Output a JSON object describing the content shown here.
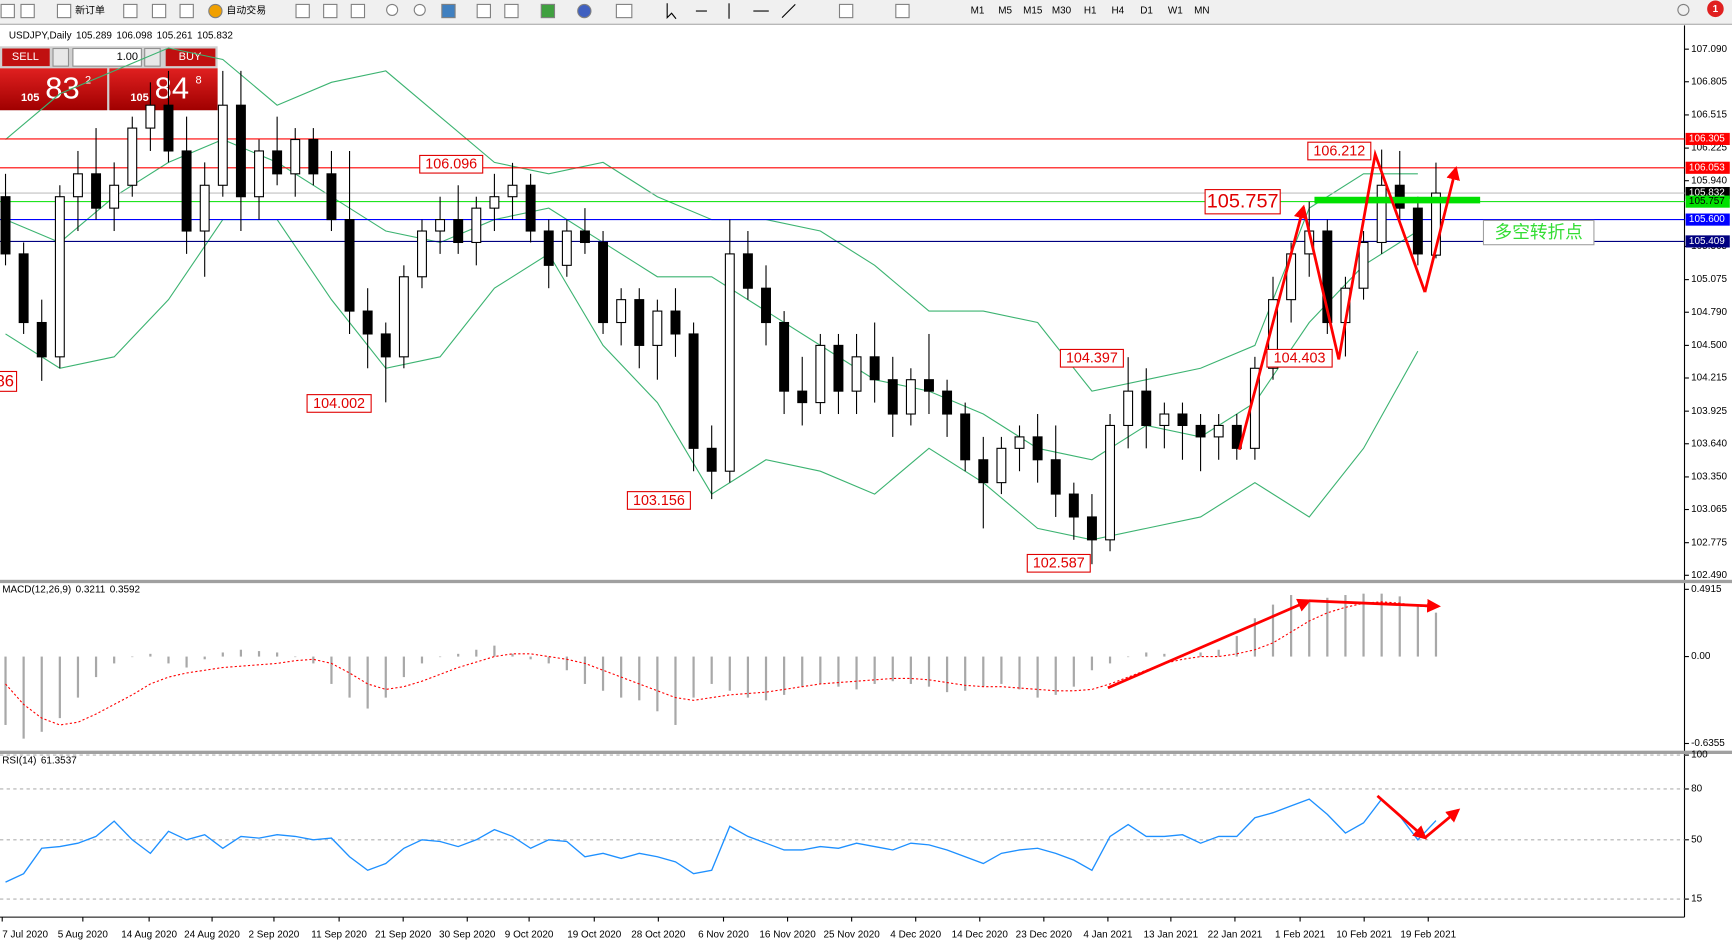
{
  "toolbar": {
    "new_order": "新订单",
    "auto_trading": "自动交易",
    "timeframes": [
      "M1",
      "M5",
      "M15",
      "M30",
      "H1",
      "H4",
      "D1",
      "W1",
      "MN"
    ],
    "notifications": "1"
  },
  "trade_panel": {
    "sell": "SELL",
    "buy": "BUY",
    "lots": "1.00",
    "sell_price": {
      "big_figure": "105",
      "pips": "83",
      "fraction": "2"
    },
    "buy_price": {
      "big_figure": "105",
      "pips": "84",
      "fraction": "8"
    }
  },
  "chart_data": [
    {
      "type": "candlestick",
      "title": "USDJPY,Daily",
      "header_values": [
        105.289,
        106.098,
        105.261,
        105.832
      ],
      "up_color": "#ffffff",
      "down_color": "#000000",
      "open": [
        105.8,
        105.3,
        104.7,
        104.4,
        105.8,
        106.0,
        105.7,
        105.9,
        106.4,
        106.6,
        106.2,
        105.5,
        105.9,
        106.6,
        105.8,
        106.2,
        106.0,
        106.3,
        106.0,
        105.6,
        104.8,
        104.6,
        104.4,
        105.1,
        105.5,
        105.6,
        105.4,
        105.7,
        105.8,
        105.9,
        105.5,
        105.2,
        105.5,
        105.4,
        104.7,
        104.9,
        104.5,
        104.8,
        104.6,
        103.6,
        103.4,
        105.3,
        105.0,
        104.7,
        104.1,
        104.0,
        104.5,
        104.1,
        104.4,
        104.2,
        103.9,
        104.2,
        104.1,
        103.9,
        103.5,
        103.3,
        103.6,
        103.7,
        103.5,
        103.2,
        103.0,
        102.8,
        103.8,
        104.1,
        103.8,
        103.9,
        103.8,
        103.7,
        103.8,
        103.6,
        104.3,
        104.9,
        105.3,
        105.5,
        104.7,
        105.0,
        105.4,
        105.9,
        105.7,
        105.289
      ],
      "high": [
        106.0,
        105.4,
        104.9,
        105.9,
        106.2,
        106.4,
        106.1,
        106.5,
        106.8,
        106.9,
        106.5,
        106.1,
        106.9,
        106.9,
        106.3,
        106.5,
        106.4,
        106.4,
        106.2,
        106.2,
        105.0,
        104.7,
        105.2,
        105.6,
        105.8,
        105.9,
        105.8,
        106.0,
        106.096,
        106.0,
        105.6,
        105.6,
        105.7,
        105.5,
        105.0,
        105.0,
        104.9,
        105.0,
        104.7,
        103.8,
        105.6,
        105.5,
        105.2,
        104.8,
        104.4,
        104.6,
        104.6,
        104.6,
        104.7,
        104.4,
        104.3,
        104.6,
        104.2,
        104.0,
        103.7,
        103.7,
        103.8,
        103.9,
        103.8,
        103.3,
        103.2,
        103.9,
        104.397,
        104.3,
        104.0,
        104.0,
        103.9,
        103.9,
        103.9,
        104.4,
        105.1,
        105.4,
        105.757,
        105.6,
        105.1,
        105.5,
        106.212,
        106.2,
        105.8,
        106.098
      ],
      "low": [
        105.2,
        104.6,
        104.19,
        104.3,
        105.5,
        105.6,
        105.5,
        105.8,
        106.2,
        106.1,
        105.3,
        105.1,
        105.8,
        105.5,
        105.6,
        105.9,
        105.8,
        105.9,
        105.5,
        104.6,
        104.3,
        104.002,
        104.3,
        105.0,
        105.3,
        105.3,
        105.2,
        105.5,
        105.6,
        105.4,
        105.0,
        105.1,
        105.3,
        104.6,
        104.5,
        104.3,
        104.2,
        104.4,
        103.4,
        103.156,
        103.3,
        104.9,
        104.5,
        103.9,
        103.8,
        103.9,
        103.9,
        103.9,
        104.0,
        103.7,
        103.8,
        103.9,
        103.7,
        103.4,
        102.9,
        103.2,
        103.4,
        103.3,
        103.0,
        102.8,
        102.587,
        102.7,
        103.6,
        103.6,
        103.6,
        103.5,
        103.4,
        103.5,
        103.5,
        103.5,
        104.2,
        104.7,
        105.1,
        104.6,
        104.403,
        104.9,
        105.3,
        105.6,
        105.2,
        105.261
      ],
      "close": [
        105.3,
        104.7,
        104.4,
        105.8,
        106.0,
        105.7,
        105.9,
        106.4,
        106.6,
        106.2,
        105.5,
        105.9,
        106.6,
        105.8,
        106.2,
        106.0,
        106.3,
        106.0,
        105.6,
        104.8,
        104.6,
        104.4,
        105.1,
        105.5,
        105.6,
        105.4,
        105.7,
        105.8,
        105.9,
        105.5,
        105.2,
        105.5,
        105.4,
        104.7,
        104.9,
        104.5,
        104.8,
        104.6,
        103.6,
        103.4,
        105.3,
        105.0,
        104.7,
        104.1,
        104.0,
        104.5,
        104.1,
        104.4,
        104.2,
        103.9,
        104.2,
        104.1,
        103.9,
        103.5,
        103.3,
        103.6,
        103.7,
        103.5,
        103.2,
        103.0,
        102.8,
        103.8,
        104.1,
        103.8,
        103.9,
        103.8,
        103.7,
        103.8,
        103.6,
        104.3,
        104.9,
        105.3,
        105.5,
        104.7,
        105.0,
        105.4,
        105.9,
        105.7,
        105.3,
        105.832
      ],
      "bands": {
        "color": "#3cb371",
        "x": [
          0,
          3,
          6,
          9,
          12,
          15,
          18,
          21,
          24,
          27,
          30,
          33,
          36,
          39,
          42,
          45,
          48,
          51,
          54,
          57,
          60,
          63,
          66,
          69,
          72,
          75,
          78
        ],
        "upper": [
          106.3,
          106.7,
          106.9,
          107.1,
          107.0,
          106.6,
          106.8,
          106.9,
          106.5,
          106.1,
          106.0,
          106.1,
          105.8,
          105.6,
          105.6,
          105.5,
          105.2,
          104.8,
          104.8,
          104.7,
          104.1,
          104.2,
          104.3,
          104.5,
          105.7,
          106.0,
          106.0
        ],
        "middle": [
          105.6,
          105.4,
          105.8,
          106.1,
          106.3,
          106.1,
          105.8,
          105.5,
          105.4,
          105.6,
          105.7,
          105.4,
          105.1,
          105.1,
          104.8,
          104.5,
          104.2,
          104.1,
          103.9,
          103.6,
          103.5,
          103.8,
          103.7,
          104.0,
          104.7,
          105.2,
          105.5
        ],
        "lower": [
          104.6,
          104.3,
          104.4,
          104.9,
          105.6,
          105.6,
          104.9,
          104.3,
          104.4,
          105.0,
          105.3,
          104.5,
          104.0,
          103.2,
          103.5,
          103.4,
          103.2,
          103.6,
          103.3,
          102.9,
          102.8,
          102.9,
          103.0,
          103.3,
          103.0,
          103.6,
          104.45
        ]
      },
      "ylim": [
        102.46,
        107.25
      ],
      "yticks": [
        {
          "value": 107.09,
          "label": "107.090"
        },
        106.805,
        106.515,
        106.225,
        {
          "value": 105.94,
          "label": "105.940"
        },
        105.365,
        105.075,
        {
          "value": 104.79,
          "label": "104.790"
        },
        {
          "value": 104.5,
          "label": "104.500"
        },
        104.215,
        103.925,
        {
          "value": 103.64,
          "label": "103.640"
        },
        {
          "value": 103.35,
          "label": "103.350"
        },
        103.065,
        102.775,
        {
          "value": 102.49,
          "label": "102.490"
        }
      ],
      "levels": [
        {
          "price": 106.305,
          "color": "#ff0000",
          "text_color": "#ffffff"
        },
        {
          "price": 106.053,
          "color": "#ff0000",
          "text_color": "#ffffff"
        },
        {
          "price": 105.832,
          "color": "#000000",
          "line_color": "#c0c0c0",
          "text_color": "#ffffff"
        },
        {
          "price": 105.757,
          "color": "#00e000",
          "text_color": "#000000"
        },
        {
          "price": {
            "value": 105.6,
            "label": "105.600"
          },
          "color": "#0000ff",
          "text_color": "#ffffff"
        },
        {
          "price": 105.409,
          "color": "#000080",
          "text_color": "#ffffff"
        }
      ],
      "annotations": [
        106.096,
        104.002,
        103.156,
        102.587,
        104.397,
        104.403,
        106.212,
        105.757
      ],
      "clipped_label": "86",
      "turning_point_label": "多空转折点",
      "x_labels": [
        "7 Jul 2020",
        "5 Aug 2020",
        "14 Aug 2020",
        "24 Aug 2020",
        "2 Sep 2020",
        "11 Sep 2020",
        "21 Sep 2020",
        "30 Sep 2020",
        "9 Oct 2020",
        "19 Oct 2020",
        "28 Oct 2020",
        "6 Nov 2020",
        "16 Nov 2020",
        "25 Nov 2020",
        "4 Dec 2020",
        "14 Dec 2020",
        "23 Dec 2020",
        "4 Jan 2021",
        "13 Jan 2021",
        "22 Jan 2021",
        "1 Feb 2021",
        "10 Feb 2021",
        "19 Feb 2021"
      ]
    },
    {
      "type": "bar",
      "title": "MACD(12,26,9)",
      "header_values": [
        0.3211,
        0.3592
      ],
      "series": [
        {
          "name": "MACD",
          "color": "#a8a8a8",
          "values": [
            -0.5,
            -0.6,
            -0.55,
            -0.45,
            -0.3,
            -0.15,
            -0.05,
            0.0,
            0.02,
            -0.05,
            -0.08,
            -0.02,
            0.03,
            0.05,
            0.04,
            0.03,
            0.0,
            -0.05,
            -0.2,
            -0.3,
            -0.38,
            -0.3,
            -0.15,
            -0.05,
            0.0,
            0.02,
            0.05,
            0.08,
            0.02,
            -0.02,
            -0.05,
            -0.1,
            -0.2,
            -0.25,
            -0.3,
            -0.32,
            -0.4,
            -0.5,
            -0.3,
            -0.2,
            -0.25,
            -0.3,
            -0.32,
            -0.28,
            -0.22,
            -0.2,
            -0.22,
            -0.24,
            -0.2,
            -0.18,
            -0.2,
            -0.22,
            -0.26,
            -0.25,
            -0.22,
            -0.2,
            -0.24,
            -0.3,
            -0.28,
            -0.22,
            -0.1,
            -0.05,
            0.0,
            0.03,
            0.02,
            0.0,
            0.03,
            0.05,
            0.15,
            0.28,
            0.38,
            0.45,
            0.4,
            0.43,
            0.45,
            0.46,
            0.46,
            0.44,
            0.38,
            0.3211
          ]
        },
        {
          "name": "Signal",
          "color": "#ff0000",
          "values": [
            -0.2,
            -0.35,
            -0.45,
            -0.5,
            -0.48,
            -0.42,
            -0.35,
            -0.28,
            -0.2,
            -0.15,
            -0.12,
            -0.1,
            -0.08,
            -0.07,
            -0.06,
            -0.05,
            -0.03,
            -0.02,
            -0.05,
            -0.12,
            -0.2,
            -0.24,
            -0.22,
            -0.18,
            -0.13,
            -0.08,
            -0.04,
            0.0,
            0.02,
            0.02,
            0.0,
            -0.02,
            -0.05,
            -0.1,
            -0.15,
            -0.2,
            -0.25,
            -0.3,
            -0.32,
            -0.3,
            -0.28,
            -0.27,
            -0.26,
            -0.24,
            -0.22,
            -0.2,
            -0.19,
            -0.18,
            -0.17,
            -0.16,
            -0.16,
            -0.17,
            -0.19,
            -0.21,
            -0.22,
            -0.22,
            -0.23,
            -0.24,
            -0.25,
            -0.25,
            -0.24,
            -0.2,
            -0.15,
            -0.1,
            -0.05,
            -0.02,
            0.0,
            0.0,
            0.02,
            0.05,
            0.1,
            0.18,
            0.26,
            0.32,
            0.36,
            0.39,
            0.4,
            0.39,
            0.37,
            0.3592
          ]
        }
      ],
      "ylim": [
        -0.68,
        0.545
      ],
      "yticks": [
        0.4915,
        {
          "value": 0,
          "label": "0.00"
        },
        -0.6355
      ]
    },
    {
      "type": "line",
      "title": "RSI(14)",
      "header_values": [
        61.3537
      ],
      "series": [
        {
          "name": "RSI",
          "color": "#1e90ff",
          "values": [
            25,
            30,
            45,
            46,
            48,
            52,
            61,
            50,
            42,
            55,
            50,
            53,
            45,
            52,
            51,
            53,
            52,
            50,
            51,
            40,
            32,
            36,
            45,
            50,
            49,
            46,
            50,
            56,
            52,
            45,
            50,
            49,
            40,
            42,
            39,
            42,
            40,
            37,
            30,
            32,
            58,
            52,
            48,
            44,
            44,
            46,
            45,
            48,
            46,
            44,
            48,
            47,
            44,
            40,
            36,
            42,
            44,
            45,
            42,
            38,
            32,
            52,
            59,
            52,
            52,
            53,
            48,
            52,
            52,
            63,
            66,
            70,
            74,
            65,
            54,
            60,
            74,
            64,
            50,
            61.3537
          ]
        }
      ],
      "ylim": [
        5,
        100
      ],
      "yticks": [
        100,
        80,
        50,
        15
      ],
      "grid": true
    }
  ]
}
